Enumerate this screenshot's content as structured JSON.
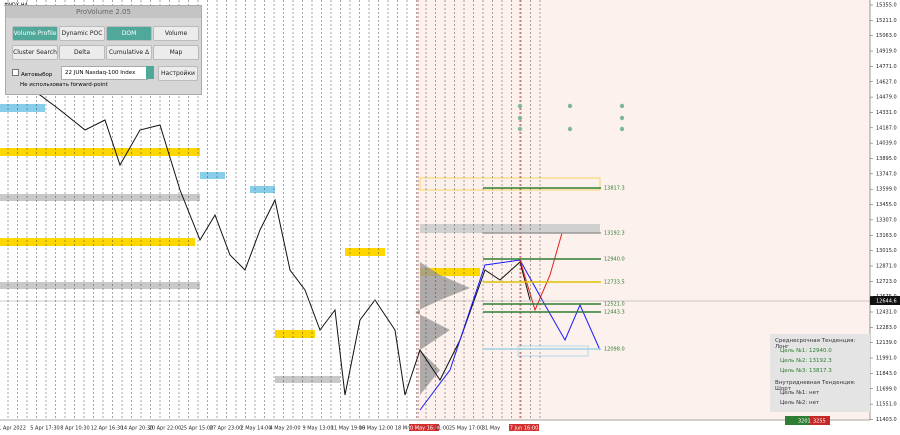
{
  "symbol": "#NDX,H4",
  "panel": {
    "title": "ProVolume 2.05",
    "buttons": [
      "Volume Profile",
      "Dynamic POC",
      "DOM",
      "Volume",
      "Cluster Search",
      "Delta",
      "Cumulative Δ",
      "Map"
    ],
    "auto_select": "Автовыбор",
    "instrument": "22 JUN Nasdaq-100 Index",
    "settings": "Настройки",
    "forward_point": "Не использовать forward-point"
  },
  "price_axis": [
    "15355.0",
    "15211.0",
    "15063.0",
    "14919.0",
    "14771.0",
    "14627.0",
    "14479.0",
    "14331.0",
    "14187.0",
    "14039.0",
    "13895.0",
    "13747.0",
    "13599.0",
    "13455.0",
    "13307.0",
    "13163.0",
    "13015.0",
    "12871.0",
    "12723.0",
    "12575.0",
    "12431.0",
    "12283.0",
    "12139.0",
    "11991.0",
    "11843.0",
    "11699.0",
    "11551.0",
    "11403.0"
  ],
  "current_price": "12644.6",
  "time_axis": [
    "1 Apr 2022",
    "5 Apr 17:30",
    "8 Apr 10:30",
    "12 Apr 16:30",
    "14 Apr 20:30",
    "20 Apr 22:00",
    "25 Apr 15:00",
    "27 Apr 23:00",
    "2 May 14:00",
    "4 May 20:00",
    "9 May 13:00",
    "11 May 19:00",
    "16 May 12:00",
    "18 May",
    "20 May 16:30",
    "11:00",
    "25 May 17:00",
    "31 May",
    "7 Jun 16:00"
  ],
  "levels": [
    "13817.3",
    "13192.3",
    "12940.0",
    "12733.5",
    "12521.0",
    "12443.3",
    "12098.0"
  ],
  "trend_box": {
    "medium_term": "Среднесрочная Тенденция: Лонг",
    "medium_targets": [
      "Цель №1: 12940.0",
      "Цель №2: 13192.3",
      "Цель №3: 13817.3"
    ],
    "intraday": "Внутридневная Тенденция: Шорт",
    "intraday_targets": [
      "Цель №1: нет",
      "Цель №2: нет"
    ]
  },
  "footer": {
    "buy": "3201",
    "sell": "3255"
  }
}
